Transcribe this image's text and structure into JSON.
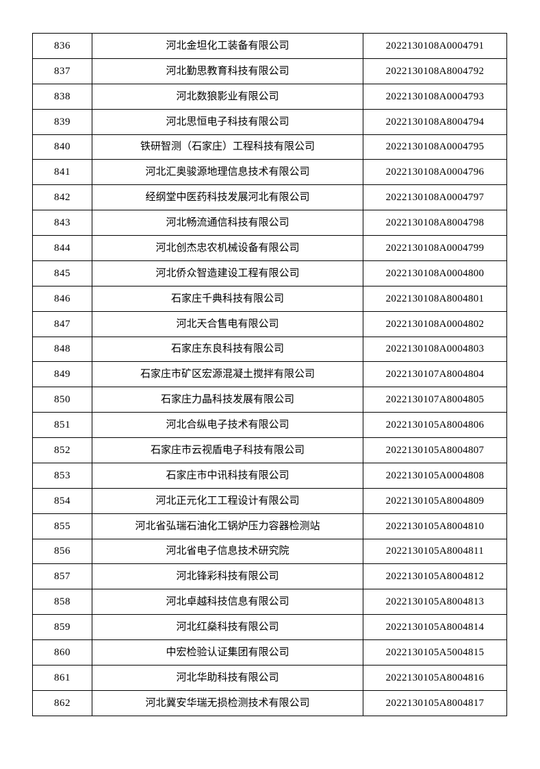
{
  "table": {
    "columns": [
      "index",
      "company",
      "code"
    ],
    "rows": [
      {
        "index": "836",
        "company": "河北金坦化工装备有限公司",
        "code": "2022130108A0004791"
      },
      {
        "index": "837",
        "company": "河北勤思教育科技有限公司",
        "code": "2022130108A8004792"
      },
      {
        "index": "838",
        "company": "河北数狼影业有限公司",
        "code": "2022130108A0004793"
      },
      {
        "index": "839",
        "company": "河北思恒电子科技有限公司",
        "code": "2022130108A8004794"
      },
      {
        "index": "840",
        "company": "铁研智测（石家庄）工程科技有限公司",
        "code": "2022130108A0004795"
      },
      {
        "index": "841",
        "company": "河北汇奥骏源地理信息技术有限公司",
        "code": "2022130108A0004796"
      },
      {
        "index": "842",
        "company": "经纲堂中医药科技发展河北有限公司",
        "code": "2022130108A0004797"
      },
      {
        "index": "843",
        "company": "河北畅流通信科技有限公司",
        "code": "2022130108A8004798"
      },
      {
        "index": "844",
        "company": "河北创杰忠农机械设备有限公司",
        "code": "2022130108A0004799"
      },
      {
        "index": "845",
        "company": "河北侨众智造建设工程有限公司",
        "code": "2022130108A0004800"
      },
      {
        "index": "846",
        "company": "石家庄千典科技有限公司",
        "code": "2022130108A8004801"
      },
      {
        "index": "847",
        "company": "河北天合售电有限公司",
        "code": "2022130108A0004802"
      },
      {
        "index": "848",
        "company": "石家庄东良科技有限公司",
        "code": "2022130108A0004803"
      },
      {
        "index": "849",
        "company": "石家庄市矿区宏源混凝土搅拌有限公司",
        "code": "2022130107A8004804"
      },
      {
        "index": "850",
        "company": "石家庄力晶科技发展有限公司",
        "code": "2022130107A8004805"
      },
      {
        "index": "851",
        "company": "河北合纵电子技术有限公司",
        "code": "2022130105A8004806"
      },
      {
        "index": "852",
        "company": "石家庄市云视盾电子科技有限公司",
        "code": "2022130105A8004807"
      },
      {
        "index": "853",
        "company": "石家庄市中讯科技有限公司",
        "code": "2022130105A0004808"
      },
      {
        "index": "854",
        "company": "河北正元化工工程设计有限公司",
        "code": "2022130105A8004809"
      },
      {
        "index": "855",
        "company": "河北省弘瑞石油化工锅炉压力容器检测站",
        "code": "2022130105A8004810"
      },
      {
        "index": "856",
        "company": "河北省电子信息技术研究院",
        "code": "2022130105A8004811"
      },
      {
        "index": "857",
        "company": "河北锋彩科技有限公司",
        "code": "2022130105A8004812"
      },
      {
        "index": "858",
        "company": "河北卓越科技信息有限公司",
        "code": "2022130105A8004813"
      },
      {
        "index": "859",
        "company": "河北红燊科技有限公司",
        "code": "2022130105A8004814"
      },
      {
        "index": "860",
        "company": "中宏检验认证集团有限公司",
        "code": "2022130105A5004815"
      },
      {
        "index": "861",
        "company": "河北华助科技有限公司",
        "code": "2022130105A8004816"
      },
      {
        "index": "862",
        "company": "河北冀安华瑞无损检测技术有限公司",
        "code": "2022130105A8004817"
      }
    ]
  }
}
